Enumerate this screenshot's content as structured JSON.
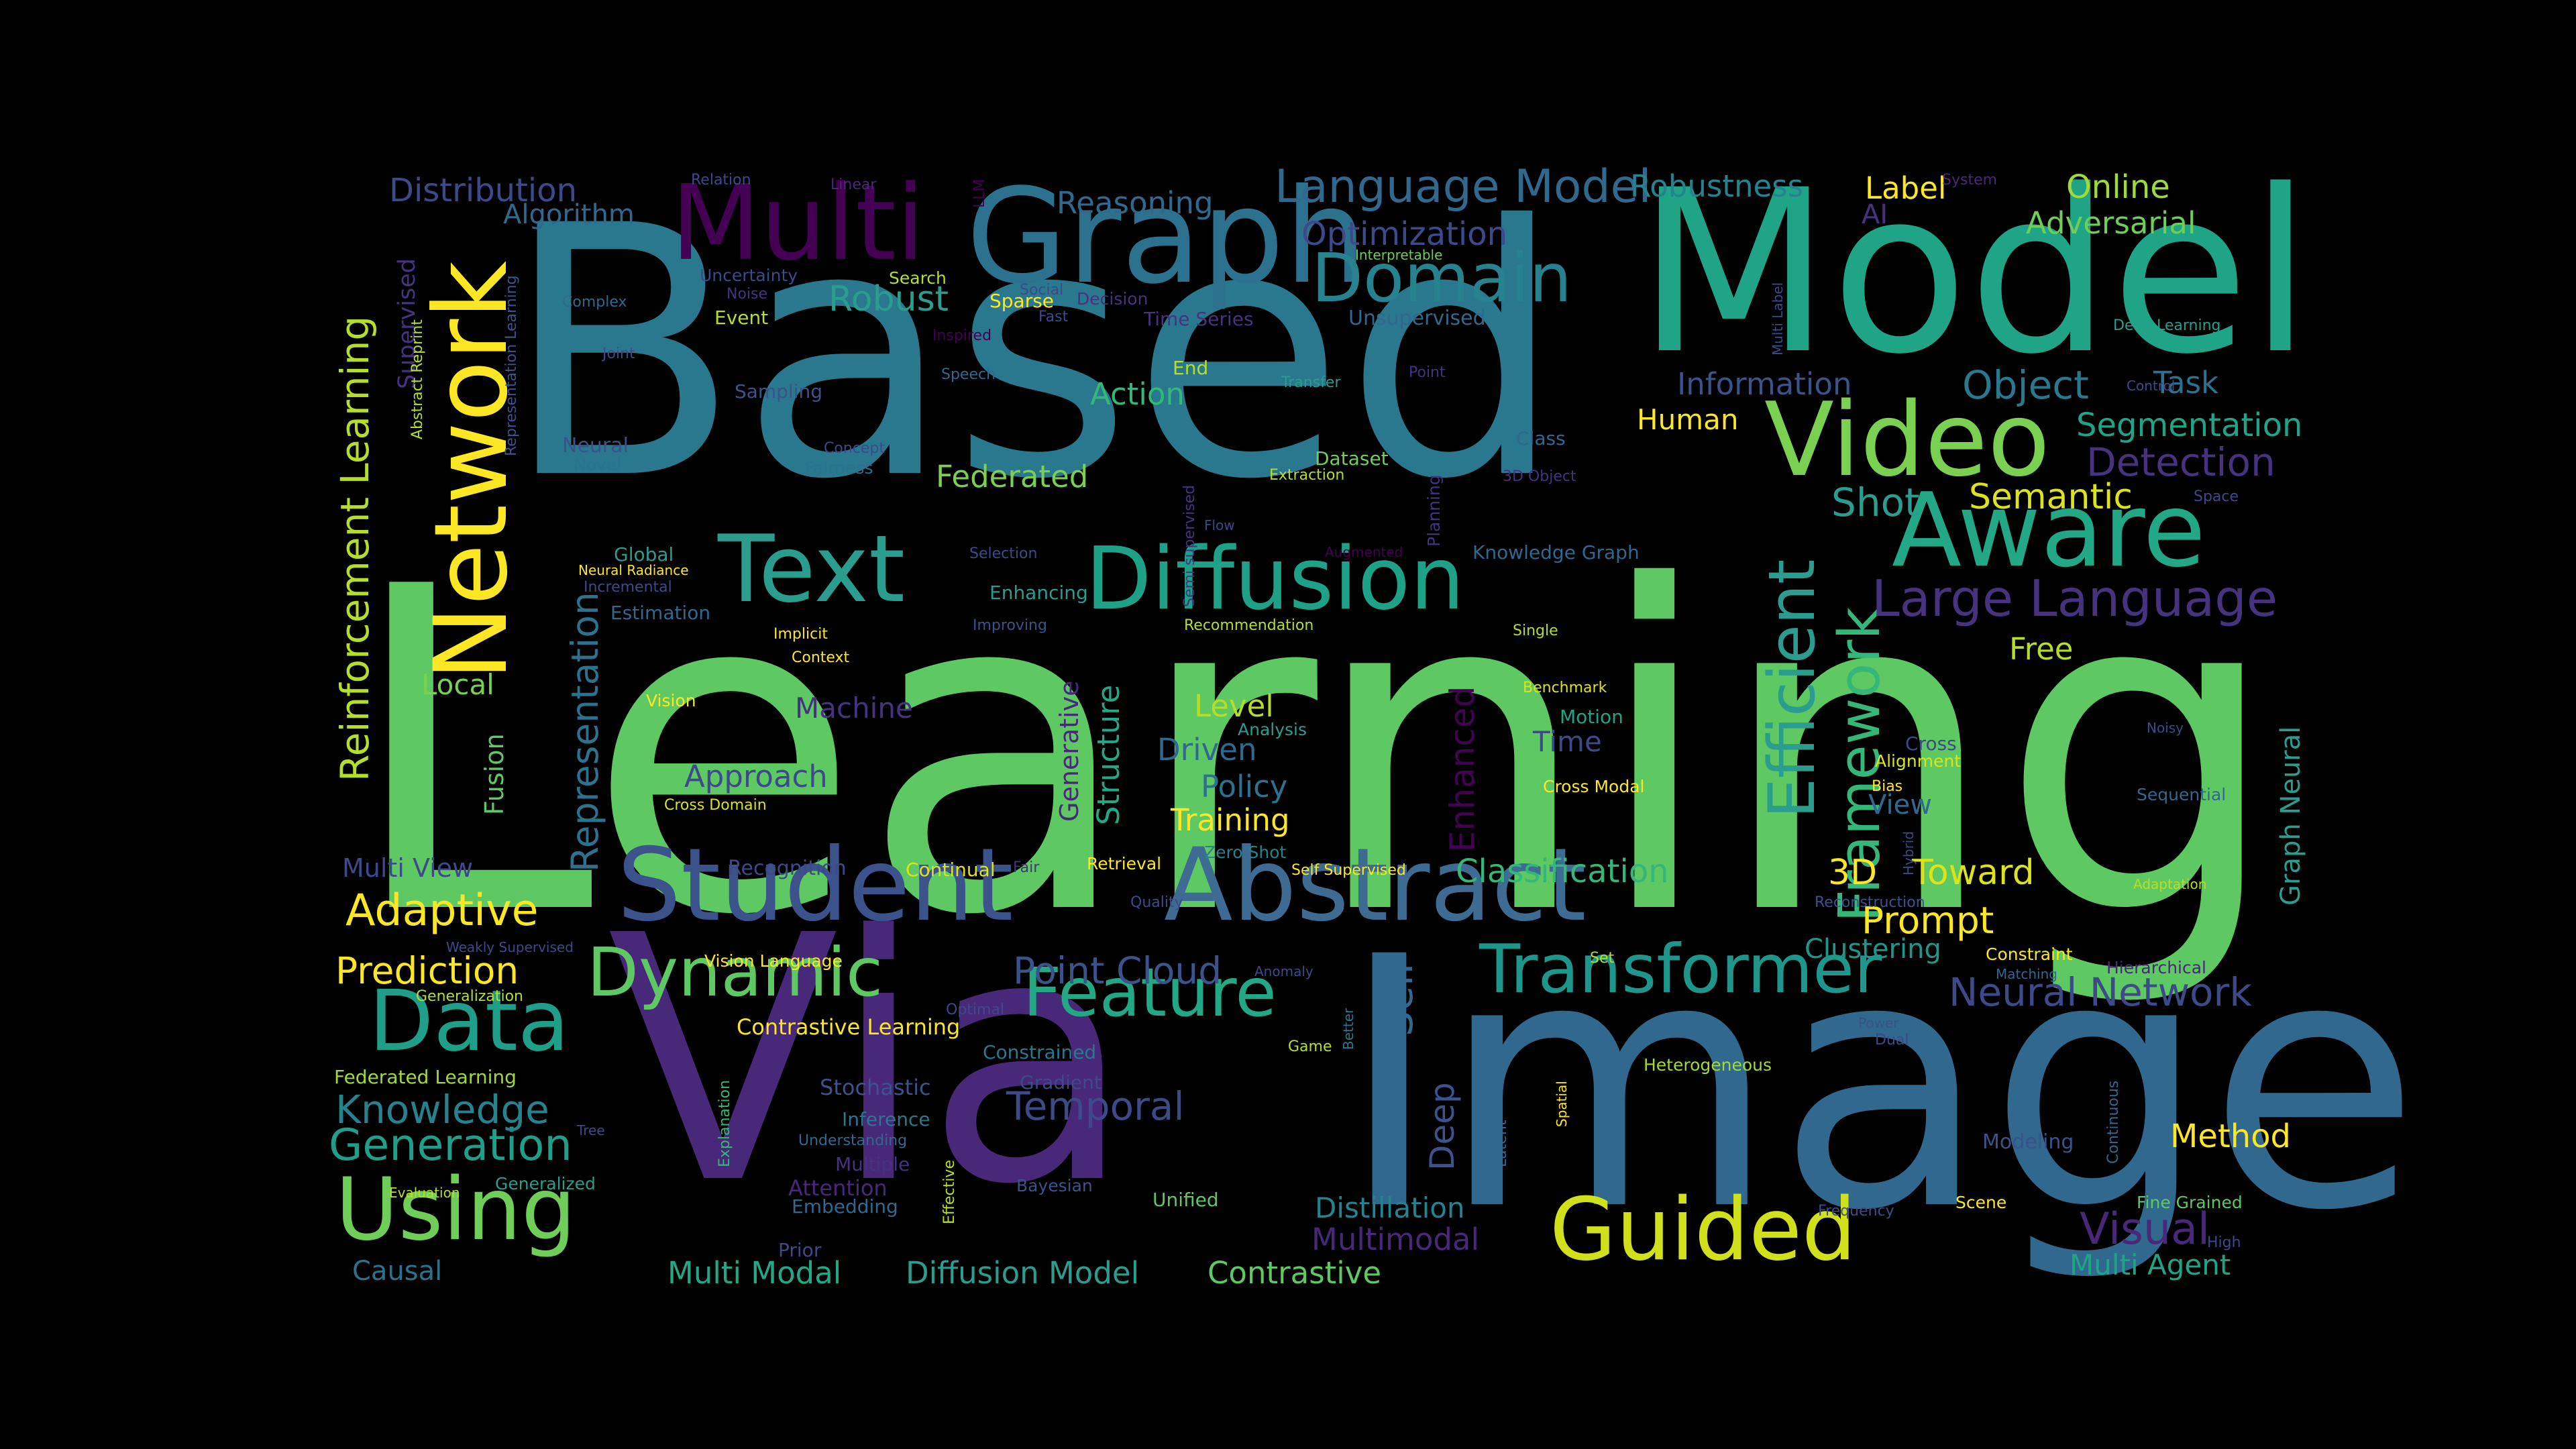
{
  "background": "#000000",
  "palette": {
    "purple": "#46327e",
    "violet": "#440154",
    "indigo": "#3e4989",
    "steel": "#31688e",
    "blue": "#365c8d",
    "teal": "#26828e",
    "cyan": "#1f9e89",
    "sea": "#35b779",
    "green": "#6ece58",
    "lime": "#b5de2b",
    "yellow": "#fde725"
  },
  "words": [
    {
      "text": "Learning",
      "color": "#5ec962"
    },
    {
      "text": "Based",
      "color": "#2a788e"
    },
    {
      "text": "Image",
      "color": "#31688e"
    },
    {
      "text": "Via",
      "color": "#482878"
    },
    {
      "text": "Model",
      "color": "#20a486"
    },
    {
      "text": "Graph",
      "color": "#2c728e"
    },
    {
      "text": "Multi",
      "color": "#440154"
    },
    {
      "text": "Network",
      "color": "#fde725"
    },
    {
      "text": "Video",
      "color": "#7ad151"
    },
    {
      "text": "Aware",
      "color": "#22a884"
    },
    {
      "text": "Text",
      "color": "#2a9d8f"
    },
    {
      "text": "Diffusion",
      "color": "#1fa187"
    },
    {
      "text": "Student",
      "color": "#3b528b"
    },
    {
      "text": "Abstract",
      "color": "#3e6b92"
    },
    {
      "text": "Using",
      "color": "#6ece58"
    },
    {
      "text": "Guided",
      "color": "#d0e11c"
    },
    {
      "text": "Data",
      "color": "#1f9e89"
    },
    {
      "text": "Dynamic",
      "color": "#5ec962"
    },
    {
      "text": "Feature",
      "color": "#22a884"
    },
    {
      "text": "Transformer",
      "color": "#1f968b"
    },
    {
      "text": "Domain",
      "color": "#26828e"
    },
    {
      "text": "Efficient",
      "color": "#2a9d8f"
    },
    {
      "text": "Framework",
      "color": "#35b779"
    },
    {
      "text": "Large Language",
      "color": "#46327e"
    },
    {
      "text": "Language Model",
      "color": "#31688e"
    },
    {
      "text": "Reinforcement Learning",
      "color": "#b5de2b"
    },
    {
      "text": "Generation",
      "color": "#1f9e89"
    },
    {
      "text": "Representation",
      "color": "#2c728e"
    },
    {
      "text": "Self",
      "color": "#31688e"
    },
    {
      "text": "Deep",
      "color": "#3b528b"
    },
    {
      "text": "Enhanced",
      "color": "#440154"
    },
    {
      "text": "Adaptive",
      "color": "#fde725"
    },
    {
      "text": "Prediction",
      "color": "#fde725"
    },
    {
      "text": "Knowledge",
      "color": "#26828e"
    },
    {
      "text": "Temporal",
      "color": "#3e4989"
    },
    {
      "text": "Point Cloud",
      "color": "#3b528b"
    },
    {
      "text": "Neural Network",
      "color": "#3e4989"
    },
    {
      "text": "Visual",
      "color": "#482878"
    },
    {
      "text": "Method",
      "color": "#fde725"
    },
    {
      "text": "Object",
      "color": "#2a788e"
    },
    {
      "text": "Segmentation",
      "color": "#20a486"
    },
    {
      "text": "Detection",
      "color": "#46327e"
    },
    {
      "text": "Semantic",
      "color": "#dce319"
    },
    {
      "text": "Shot",
      "color": "#2a9d8f"
    },
    {
      "text": "Prompt",
      "color": "#fde725"
    },
    {
      "text": "3D",
      "color": "#fde725"
    },
    {
      "text": "Toward",
      "color": "#dce319"
    },
    {
      "text": "Classification",
      "color": "#35b779"
    },
    {
      "text": "Robust",
      "color": "#2a9d8f"
    },
    {
      "text": "Optimization",
      "color": "#3e4989"
    },
    {
      "text": "Reasoning",
      "color": "#31688e"
    },
    {
      "text": "Robustness",
      "color": "#26828e"
    },
    {
      "text": "Label",
      "color": "#fde725"
    },
    {
      "text": "Online",
      "color": "#a0da39"
    },
    {
      "text": "Adversarial",
      "color": "#6ece58"
    },
    {
      "text": "Distribution",
      "color": "#3e4989"
    },
    {
      "text": "Algorithm",
      "color": "#31688e"
    },
    {
      "text": "Information",
      "color": "#3b528b"
    },
    {
      "text": "Task",
      "color": "#2c728e"
    },
    {
      "text": "Human",
      "color": "#fde725"
    },
    {
      "text": "Federated",
      "color": "#7ad151"
    },
    {
      "text": "Action",
      "color": "#35b779"
    },
    {
      "text": "Machine",
      "color": "#46327e"
    },
    {
      "text": "Approach",
      "color": "#3e4989"
    },
    {
      "text": "Level",
      "color": "#b5de2b"
    },
    {
      "text": "Driven",
      "color": "#31688e"
    },
    {
      "text": "Policy",
      "color": "#2c728e"
    },
    {
      "text": "Training",
      "color": "#fde725"
    },
    {
      "text": "Time",
      "color": "#3e4989"
    },
    {
      "text": "Local",
      "color": "#7ad151"
    },
    {
      "text": "Fusion",
      "color": "#5ec962"
    },
    {
      "text": "Multi View",
      "color": "#3e4989"
    },
    {
      "text": "Causal",
      "color": "#2c728e"
    },
    {
      "text": "Multi Modal",
      "color": "#22a884"
    },
    {
      "text": "Diffusion Model",
      "color": "#2a9d8f"
    },
    {
      "text": "Contrastive",
      "color": "#5ec962"
    },
    {
      "text": "Distillation",
      "color": "#26828e"
    },
    {
      "text": "Multimodal",
      "color": "#482878"
    },
    {
      "text": "Multi Agent",
      "color": "#20a486"
    },
    {
      "text": "Clustering",
      "color": "#1f968b"
    },
    {
      "text": "View",
      "color": "#31688e"
    },
    {
      "text": "Free",
      "color": "#b5de2b"
    },
    {
      "text": "Graph Neural",
      "color": "#2a9d8f"
    },
    {
      "text": "Unsupervised",
      "color": "#31688e"
    },
    {
      "text": "Supervised",
      "color": "#46327e"
    },
    {
      "text": "Structure",
      "color": "#22a884"
    },
    {
      "text": "Generative",
      "color": "#482878"
    },
    {
      "text": "AI",
      "color": "#46327e"
    },
    {
      "text": "Stochastic",
      "color": "#3b528b"
    },
    {
      "text": "Gradient",
      "color": "#3e4989"
    },
    {
      "text": "Attention",
      "color": "#482878"
    },
    {
      "text": "Embedding",
      "color": "#31688e"
    },
    {
      "text": "Inference",
      "color": "#2a788e"
    },
    {
      "text": "Multiple",
      "color": "#46327e"
    },
    {
      "text": "Contrastive Learning",
      "color": "#fde725"
    },
    {
      "text": "Federated Learning",
      "color": "#a0da39"
    },
    {
      "text": "Recognition",
      "color": "#3e4989"
    },
    {
      "text": "Continual",
      "color": "#dce319"
    },
    {
      "text": "Estimation",
      "color": "#31688e"
    },
    {
      "text": "Global",
      "color": "#2a9d8f"
    },
    {
      "text": "Neural",
      "color": "#3b528b"
    },
    {
      "text": "Novel",
      "color": "#2c728e"
    },
    {
      "text": "Fairness",
      "color": "#2c728e"
    },
    {
      "text": "Concept",
      "color": "#3e4989"
    },
    {
      "text": "Event",
      "color": "#b5de2b"
    },
    {
      "text": "Sampling",
      "color": "#3b528b"
    },
    {
      "text": "Joint",
      "color": "#3e4989"
    },
    {
      "text": "Complex",
      "color": "#31688e"
    },
    {
      "text": "Noise",
      "color": "#46327e"
    },
    {
      "text": "Uncertainty",
      "color": "#3e4989"
    },
    {
      "text": "Relation",
      "color": "#3e4989"
    },
    {
      "text": "Linear",
      "color": "#482878"
    },
    {
      "text": "LLM",
      "color": "#440154"
    },
    {
      "text": "Search",
      "color": "#b5de2b"
    },
    {
      "text": "Social",
      "color": "#3e4989"
    },
    {
      "text": "Sparse",
      "color": "#fde725"
    },
    {
      "text": "Fast",
      "color": "#3e4989"
    },
    {
      "text": "Decision",
      "color": "#46327e"
    },
    {
      "text": "Time Series",
      "color": "#46327e"
    },
    {
      "text": "Inspired",
      "color": "#440154"
    },
    {
      "text": "Speech",
      "color": "#31688e"
    },
    {
      "text": "End",
      "color": "#b5de2b"
    },
    {
      "text": "Transfer",
      "color": "#2a9d8f"
    },
    {
      "text": "Point",
      "color": "#46327e"
    },
    {
      "text": "Interpretable",
      "color": "#6ece58"
    },
    {
      "text": "System",
      "color": "#482878"
    },
    {
      "text": "Multi Label",
      "color": "#3e4989"
    },
    {
      "text": "Deep Learning",
      "color": "#2a9d8f"
    },
    {
      "text": "Control",
      "color": "#3e4989"
    },
    {
      "text": "Space",
      "color": "#3e4989"
    },
    {
      "text": "Noisy",
      "color": "#3e4989"
    },
    {
      "text": "Sequential",
      "color": "#31688e"
    },
    {
      "text": "Adaptation",
      "color": "#b5de2b"
    },
    {
      "text": "Hierarchical",
      "color": "#482878"
    },
    {
      "text": "Fine Grained",
      "color": "#5ec962"
    },
    {
      "text": "High",
      "color": "#3e4989"
    },
    {
      "text": "Continuous",
      "color": "#31688e"
    },
    {
      "text": "Modeling",
      "color": "#3b528b"
    },
    {
      "text": "Scene",
      "color": "#fde725"
    },
    {
      "text": "Frequency",
      "color": "#3e4989"
    },
    {
      "text": "Heterogeneous",
      "color": "#a0da39"
    },
    {
      "text": "Spatial",
      "color": "#fde725"
    },
    {
      "text": "Latent",
      "color": "#31688e"
    },
    {
      "text": "Power",
      "color": "#3b528b"
    },
    {
      "text": "Dual",
      "color": "#3e4989"
    },
    {
      "text": "Constraint",
      "color": "#fde725"
    },
    {
      "text": "Matching",
      "color": "#31688e"
    },
    {
      "text": "Reconstruction",
      "color": "#3b528b"
    },
    {
      "text": "Hybrid",
      "color": "#3e4989"
    },
    {
      "text": "Bias",
      "color": "#fde725"
    },
    {
      "text": "Alignment",
      "color": "#dce319"
    },
    {
      "text": "Cross",
      "color": "#3e4989"
    },
    {
      "text": "Cross Modal",
      "color": "#fde725"
    },
    {
      "text": "Motion",
      "color": "#20a486"
    },
    {
      "text": "Benchmark",
      "color": "#dce319"
    },
    {
      "text": "Single",
      "color": "#b5de2b"
    },
    {
      "text": "Knowledge Graph",
      "color": "#31688e"
    },
    {
      "text": "Augmented",
      "color": "#440154"
    },
    {
      "text": "Planning",
      "color": "#46327e"
    },
    {
      "text": "3D Object",
      "color": "#46327e"
    },
    {
      "text": "Class",
      "color": "#31688e"
    },
    {
      "text": "Dataset",
      "color": "#6ece58"
    },
    {
      "text": "Extraction",
      "color": "#b5de2b"
    },
    {
      "text": "Flow",
      "color": "#3e4989"
    },
    {
      "text": "Recommendation",
      "color": "#b5de2b"
    },
    {
      "text": "Semi supervised",
      "color": "#46327e"
    },
    {
      "text": "Analysis",
      "color": "#2a9d8f"
    },
    {
      "text": "Zero Shot",
      "color": "#26828e"
    },
    {
      "text": "Self Supervised",
      "color": "#fde725"
    },
    {
      "text": "Retrieval",
      "color": "#fde725"
    },
    {
      "text": "Fair",
      "color": "#46327e"
    },
    {
      "text": "Quality",
      "color": "#3e4989"
    },
    {
      "text": "Set",
      "color": "#b5de2b"
    },
    {
      "text": "Anomaly",
      "color": "#3e4989"
    },
    {
      "text": "Better",
      "color": "#2a788e"
    },
    {
      "text": "Game",
      "color": "#b5de2b"
    },
    {
      "text": "Optimal",
      "color": "#3e4989"
    },
    {
      "text": "Constrained",
      "color": "#2a788e"
    },
    {
      "text": "Bayesian",
      "color": "#3b528b"
    },
    {
      "text": "Unified",
      "color": "#5ec962"
    },
    {
      "text": "Effective",
      "color": "#b5de2b"
    },
    {
      "text": "Explanation",
      "color": "#35b779"
    },
    {
      "text": "Understanding",
      "color": "#31688e"
    },
    {
      "text": "Prior",
      "color": "#3e4989"
    },
    {
      "text": "Evaluation",
      "color": "#b5de2b"
    },
    {
      "text": "Generalized",
      "color": "#2a9d8f"
    },
    {
      "text": "Tree",
      "color": "#3e4989"
    },
    {
      "text": "Generalization",
      "color": "#b5de2b"
    },
    {
      "text": "Weakly Supervised",
      "color": "#3e4989"
    },
    {
      "text": "Vision Language",
      "color": "#fde725"
    },
    {
      "text": "Cross Domain",
      "color": "#dce319"
    },
    {
      "text": "Vision",
      "color": "#fde725"
    },
    {
      "text": "Context",
      "color": "#fde725"
    },
    {
      "text": "Implicit",
      "color": "#fde725"
    },
    {
      "text": "Enhancing",
      "color": "#2a9d8f"
    },
    {
      "text": "Improving",
      "color": "#3b528b"
    },
    {
      "text": "Selection",
      "color": "#3e4989"
    },
    {
      "text": "Neural Radiance",
      "color": "#fde725"
    },
    {
      "text": "Incremental",
      "color": "#3e4989"
    },
    {
      "text": "Abstract Reprint",
      "color": "#b5de2b"
    },
    {
      "text": "Representation Learning",
      "color": "#3b528b"
    }
  ]
}
